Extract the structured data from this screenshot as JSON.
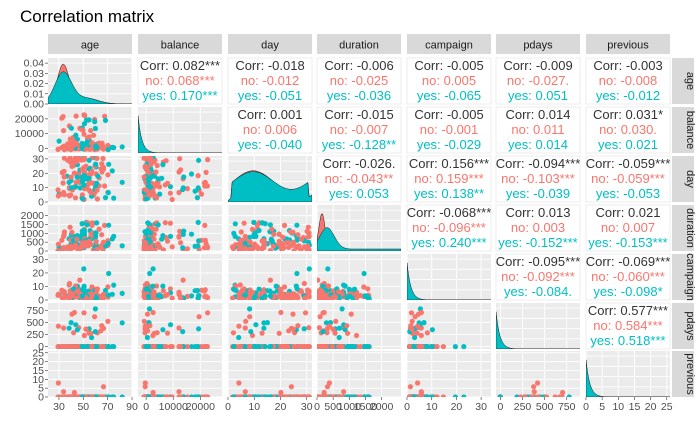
{
  "chart_data": {
    "type": "scatter",
    "title": "Correlation matrix",
    "variables": [
      "age",
      "balance",
      "day",
      "duration",
      "campaign",
      "pdays",
      "previous"
    ],
    "groups": [
      "no",
      "yes"
    ],
    "colors": {
      "no": "#F8766D",
      "yes": "#00BFC4",
      "overall": "#333333"
    },
    "axis_limits": {
      "age": [
        21,
        90
      ],
      "balance": [
        -3000,
        28000
      ],
      "day": [
        0,
        32
      ],
      "duration": [
        0,
        2600
      ],
      "campaign": [
        0,
        34
      ],
      "pdays": [
        -50,
        900
      ],
      "previous": [
        0,
        26
      ]
    },
    "y_ticks": {
      "age": [
        "0.00",
        "0.01",
        "0.02",
        "0.03",
        "0.04"
      ],
      "balance": [
        "0",
        "10000",
        "20000"
      ],
      "day": [
        "0",
        "10",
        "20",
        "30"
      ],
      "duration": [
        "0",
        "500",
        "1000",
        "1500",
        "2000"
      ],
      "campaign": [
        "0",
        "10",
        "20",
        "30"
      ],
      "pdays": [
        "0",
        "250",
        "500",
        "750"
      ],
      "previous": [
        "0",
        "5",
        "10",
        "15",
        "20",
        "25"
      ]
    },
    "y_tick_values": {
      "age": [
        0,
        0.01,
        0.02,
        0.03,
        0.04
      ],
      "balance": [
        0,
        10000,
        20000
      ],
      "day": [
        0,
        10,
        20,
        30
      ],
      "duration": [
        0,
        500,
        1000,
        1500,
        2000
      ],
      "campaign": [
        0,
        10,
        20,
        30
      ],
      "pdays": [
        0,
        250,
        500,
        750
      ],
      "previous": [
        0,
        5,
        10,
        15,
        20,
        25
      ]
    },
    "x_ticks": {
      "age": [
        "30",
        "50",
        "70",
        "90"
      ],
      "balance": [
        "0",
        "10000",
        "20000"
      ],
      "day": [
        "0",
        "10",
        "20",
        "30"
      ],
      "duration": [
        "0",
        "500",
        "1000",
        "1500",
        "2000"
      ],
      "campaign": [
        "0",
        "10",
        "20",
        "30"
      ],
      "pdays": [
        "0",
        "250",
        "500",
        "750"
      ],
      "previous": [
        "0",
        "5",
        "10",
        "15",
        "20",
        "25"
      ]
    },
    "x_tick_values": {
      "age": [
        30,
        50,
        70,
        90
      ],
      "balance": [
        0,
        10000,
        20000
      ],
      "day": [
        0,
        10,
        20,
        30
      ],
      "duration": [
        0,
        500,
        1000,
        1500,
        2000
      ],
      "campaign": [
        0,
        10,
        20,
        30
      ],
      "pdays": [
        0,
        250,
        500,
        750
      ],
      "previous": [
        0,
        5,
        10,
        15,
        20,
        25
      ]
    },
    "density_ylim": [
      0,
      0.045
    ],
    "correlations": [
      {
        "row": "age",
        "col": "balance",
        "corr": "0.082***",
        "no": "0.068***",
        "yes": "0.170***"
      },
      {
        "row": "age",
        "col": "day",
        "corr": "-0.018",
        "no": "-0.012",
        "yes": "-0.051"
      },
      {
        "row": "age",
        "col": "duration",
        "corr": "-0.006",
        "no": "-0.025",
        "yes": "-0.036"
      },
      {
        "row": "age",
        "col": "campaign",
        "corr": "-0.005",
        "no": "0.005",
        "yes": "-0.065"
      },
      {
        "row": "age",
        "col": "pdays",
        "corr": "-0.009",
        "no": "-0.027.",
        "yes": "0.051"
      },
      {
        "row": "age",
        "col": "previous",
        "corr": "-0.003",
        "no": "-0.008",
        "yes": "-0.012"
      },
      {
        "row": "balance",
        "col": "day",
        "corr": "0.001",
        "no": "0.006",
        "yes": "-0.040"
      },
      {
        "row": "balance",
        "col": "duration",
        "corr": "-0.015",
        "no": "-0.007",
        "yes": "-0.128**"
      },
      {
        "row": "balance",
        "col": "campaign",
        "corr": "-0.005",
        "no": "-0.001",
        "yes": "-0.029"
      },
      {
        "row": "balance",
        "col": "pdays",
        "corr": "0.014",
        "no": "0.011",
        "yes": "0.014"
      },
      {
        "row": "balance",
        "col": "previous",
        "corr": "0.031*",
        "no": "0.030.",
        "yes": "0.021"
      },
      {
        "row": "day",
        "col": "duration",
        "corr": "-0.026.",
        "no": "-0.043**",
        "yes": "0.053"
      },
      {
        "row": "day",
        "col": "campaign",
        "corr": "0.156***",
        "no": "0.159***",
        "yes": "0.138**"
      },
      {
        "row": "day",
        "col": "pdays",
        "corr": "-0.094***",
        "no": "-0.103***",
        "yes": "-0.039"
      },
      {
        "row": "day",
        "col": "previous",
        "corr": "-0.059***",
        "no": "-0.059***",
        "yes": "-0.053"
      },
      {
        "row": "duration",
        "col": "campaign",
        "corr": "-0.068***",
        "no": "-0.096***",
        "yes": "0.240***"
      },
      {
        "row": "duration",
        "col": "pdays",
        "corr": "0.013",
        "no": "0.003",
        "yes": "-0.152***"
      },
      {
        "row": "duration",
        "col": "previous",
        "corr": "0.021",
        "no": "0.007",
        "yes": "-0.153***"
      },
      {
        "row": "campaign",
        "col": "pdays",
        "corr": "-0.095***",
        "no": "-0.092***",
        "yes": "-0.084."
      },
      {
        "row": "campaign",
        "col": "previous",
        "corr": "-0.069***",
        "no": "-0.060***",
        "yes": "-0.098*"
      },
      {
        "row": "pdays",
        "col": "previous",
        "corr": "0.577***",
        "no": "0.584***",
        "yes": "0.518***"
      }
    ],
    "labels": {
      "corr_prefix": "Corr:",
      "group_no": "no:",
      "group_yes": "yes:"
    },
    "grid": true
  }
}
